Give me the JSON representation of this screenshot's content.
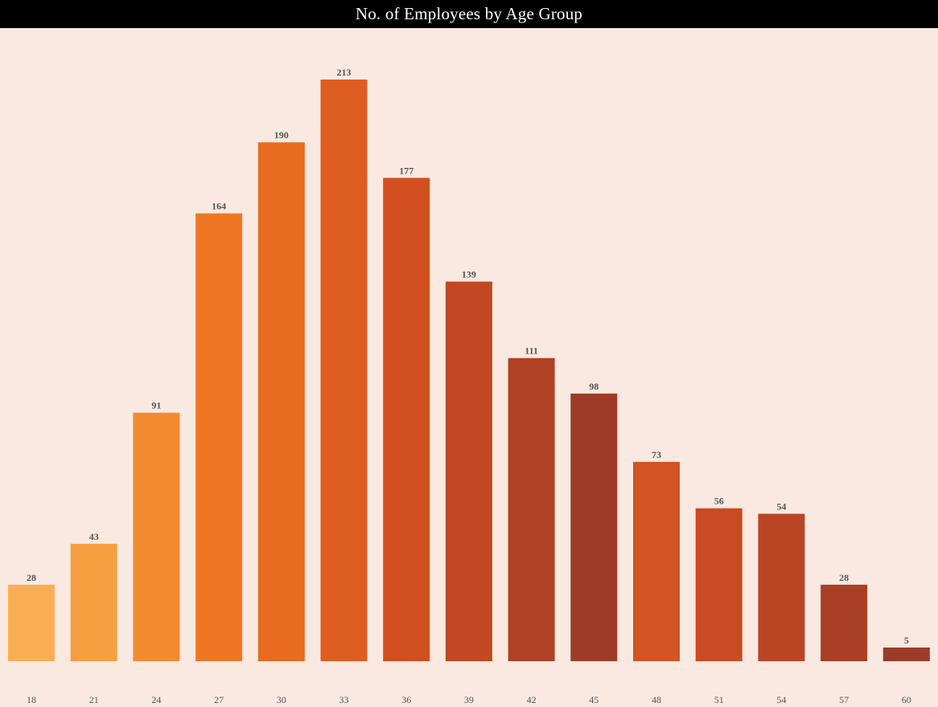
{
  "chart_data": {
    "type": "bar",
    "title": "No. of Employees by Age Group",
    "xlabel": "",
    "ylabel": "",
    "categories": [
      "18",
      "21",
      "24",
      "27",
      "30",
      "33",
      "36",
      "39",
      "42",
      "45",
      "48",
      "51",
      "54",
      "57",
      "60"
    ],
    "values": [
      28,
      43,
      91,
      164,
      190,
      213,
      177,
      139,
      111,
      98,
      73,
      56,
      54,
      28,
      5
    ],
    "colors": [
      "#f9ae55",
      "#f59f40",
      "#f28b30",
      "#ef7723",
      "#e86b1f",
      "#de5d20",
      "#d24f21",
      "#c34722",
      "#b04125",
      "#9e3a28",
      "#d45325",
      "#c84b24",
      "#ba4525",
      "#aa3f27",
      "#9c3a29"
    ],
    "ylim": [
      0,
      213
    ],
    "grid": false,
    "legend": "none"
  },
  "colors": {
    "background": "#f9e9e1",
    "title_bar": "#000000",
    "title_text": "#ffffff",
    "label_text": "#555555"
  }
}
